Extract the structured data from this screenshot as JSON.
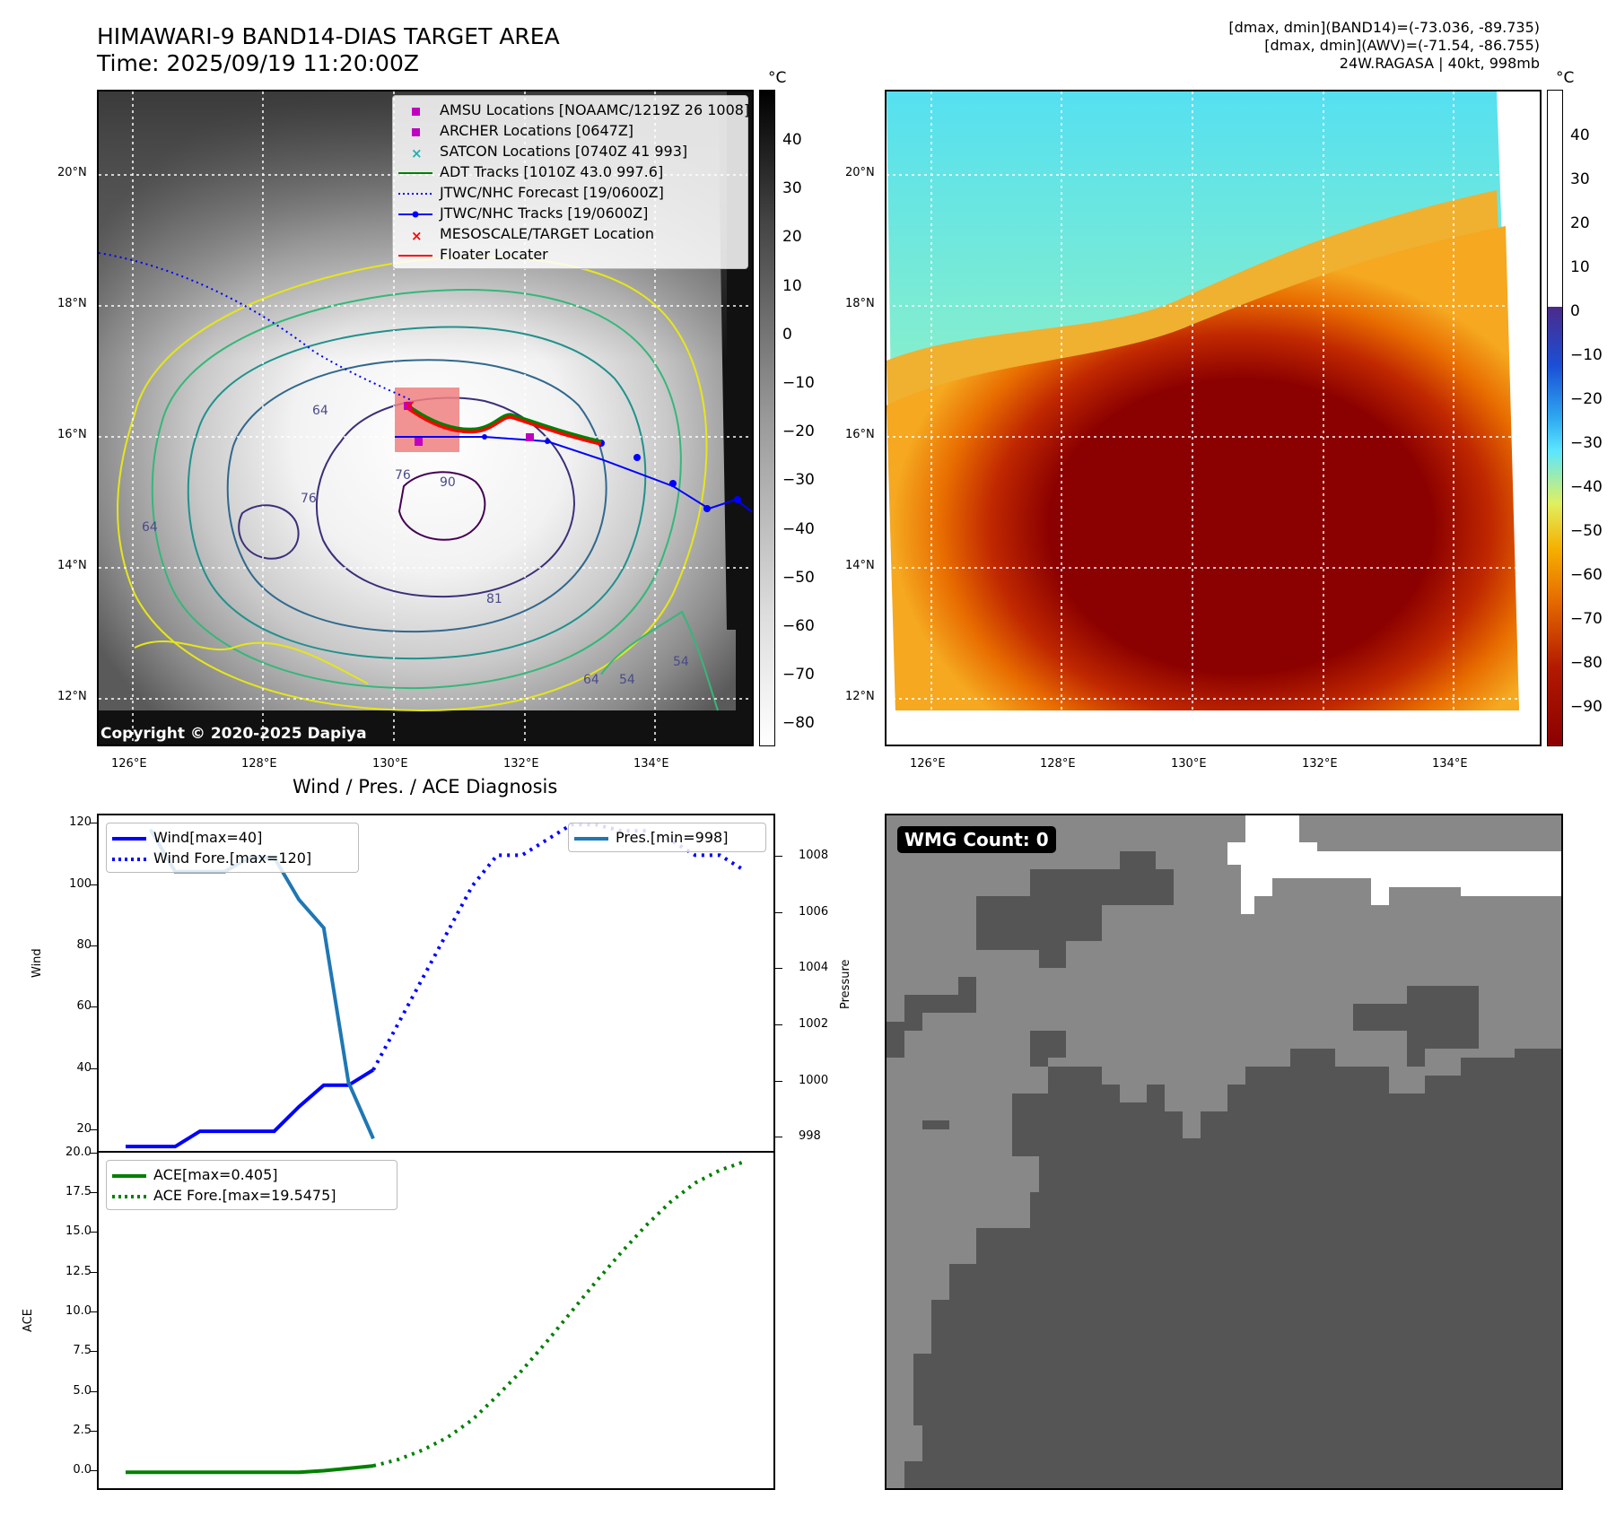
{
  "header": {
    "title_line1": "HIMAWARI-9 BAND14-DIAS TARGET AREA",
    "title_line2": "Time: 2025/09/19 11:20:00Z",
    "info_line1": "[dmax, dmin](BAND14)=(-73.036, -89.735)",
    "info_line2": "[dmax, dmin](AWV)=(-71.54, -86.755)",
    "info_line3": "24W.RAGASA | 40kt, 998mb"
  },
  "map_axes": {
    "lat_labels": [
      "20°N",
      "18°N",
      "16°N",
      "14°N",
      "12°N"
    ],
    "lon_labels": [
      "126°E",
      "128°E",
      "130°E",
      "132°E",
      "134°E"
    ]
  },
  "colorbar_band14": {
    "unit": "°C",
    "labels": [
      "40",
      "30",
      "20",
      "10",
      "0",
      "−10",
      "−20",
      "−30",
      "−40",
      "−50",
      "−60",
      "−70",
      "−80"
    ]
  },
  "colorbar_awv": {
    "unit": "°C",
    "labels": [
      "40",
      "30",
      "20",
      "10",
      "0",
      "−10",
      "−20",
      "−30",
      "−40",
      "−50",
      "−60",
      "−70",
      "−80",
      "−90"
    ]
  },
  "map_legend": [
    {
      "label": "AMSU Locations [NOAAMC/1219Z 26 1008]",
      "color": "#c000c0",
      "symbol": "square"
    },
    {
      "label": "ARCHER Locations [0647Z]",
      "color": "#c000c0",
      "symbol": "square"
    },
    {
      "label": "SATCON Locations [0740Z 41 993]",
      "color": "#20b0b0",
      "symbol": "x"
    },
    {
      "label": "ADT Tracks [1010Z 43.0 997.6]",
      "color": "#008000",
      "symbol": "line"
    },
    {
      "label": "JTWC/NHC Forecast [19/0600Z]",
      "color": "#0000ff",
      "symbol": "dotted"
    },
    {
      "label": "JTWC/NHC Tracks [19/0600Z]",
      "color": "#0000ff",
      "symbol": "line-dot"
    },
    {
      "label": "MESOSCALE/TARGET Location",
      "color": "#ff0000",
      "symbol": "x"
    },
    {
      "label": "Floater Locater",
      "color": "#ff0000",
      "symbol": "line"
    }
  ],
  "contour_labels": [
    "64",
    "76",
    "54",
    "64",
    "54",
    "64",
    "76",
    "81",
    "90"
  ],
  "copyright": "Copyright © 2020-2025 Dapiya",
  "wind_panel": {
    "title": "Wind / Pres. / ACE Diagnosis",
    "ylabel_left": "Wind",
    "ylabel_right": "Pressure",
    "legend_left": [
      "Wind[max=40]",
      "Wind Fore.[max=120]"
    ],
    "legend_right": [
      "Pres.[min=998]"
    ],
    "ytick_left": [
      "120",
      "100",
      "80",
      "60",
      "40",
      "20"
    ],
    "ytick_right": [
      "1008",
      "1006",
      "1004",
      "1002",
      "1000",
      "998"
    ]
  },
  "ace_panel": {
    "ylabel": "ACE",
    "legend": [
      "ACE[max=0.405]",
      "ACE Fore.[max=19.5475]"
    ],
    "ytick": [
      "20.0",
      "17.5",
      "15.0",
      "12.5",
      "10.0",
      "7.5",
      "5.0",
      "2.5",
      "0.0"
    ]
  },
  "wmg": {
    "label": "WMG Count: 0"
  },
  "chart_data": [
    {
      "type": "line",
      "panel": "wind",
      "series": [
        {
          "name": "Wind[max=40]",
          "color": "#0000ff",
          "style": "solid",
          "x": [
            0,
            1,
            2,
            3,
            4,
            5,
            6,
            7,
            8,
            9,
            10
          ],
          "values": [
            15,
            15,
            15,
            20,
            20,
            20,
            20,
            28,
            35,
            35,
            40
          ]
        },
        {
          "name": "Wind Fore.[max=120]",
          "color": "#0000ff",
          "style": "dotted",
          "x": [
            10,
            11,
            12,
            13,
            14,
            15,
            16,
            17,
            18,
            19,
            20,
            21,
            22,
            23,
            24,
            25
          ],
          "values": [
            40,
            55,
            70,
            85,
            100,
            110,
            110,
            115,
            120,
            120,
            118,
            118,
            115,
            110,
            110,
            105
          ]
        },
        {
          "name": "Pres.[min=998]",
          "color": "#1f77b4",
          "style": "solid",
          "axis": "right",
          "x": [
            1,
            2,
            3,
            4,
            5,
            6,
            7,
            8,
            9,
            10
          ],
          "values": [
            1009,
            1007.5,
            1007.5,
            1007.5,
            1008,
            1008,
            1006.5,
            1005.5,
            1000,
            998
          ]
        }
      ],
      "ylim_left": [
        13,
        123
      ],
      "ylim_right": [
        997.5,
        1009.5
      ],
      "xlim": [
        0,
        25
      ]
    },
    {
      "type": "line",
      "panel": "ace",
      "series": [
        {
          "name": "ACE[max=0.405]",
          "color": "#008000",
          "style": "solid",
          "x": [
            0,
            1,
            2,
            3,
            4,
            5,
            6,
            7,
            8,
            9,
            10
          ],
          "values": [
            0,
            0,
            0,
            0,
            0,
            0,
            0,
            0,
            0.1,
            0.25,
            0.405
          ]
        },
        {
          "name": "ACE Fore.[max=19.5475]",
          "color": "#008000",
          "style": "dotted",
          "x": [
            10,
            11,
            12,
            13,
            14,
            15,
            16,
            17,
            18,
            19,
            20,
            21,
            22,
            23,
            24,
            25
          ],
          "values": [
            0.405,
            0.8,
            1.4,
            2.2,
            3.3,
            4.8,
            6.4,
            8.2,
            10.1,
            12,
            13.8,
            15.5,
            17,
            18.2,
            19,
            19.5475
          ]
        }
      ],
      "ylim": [
        -1,
        20.1
      ],
      "xlim": [
        0,
        25
      ]
    }
  ]
}
